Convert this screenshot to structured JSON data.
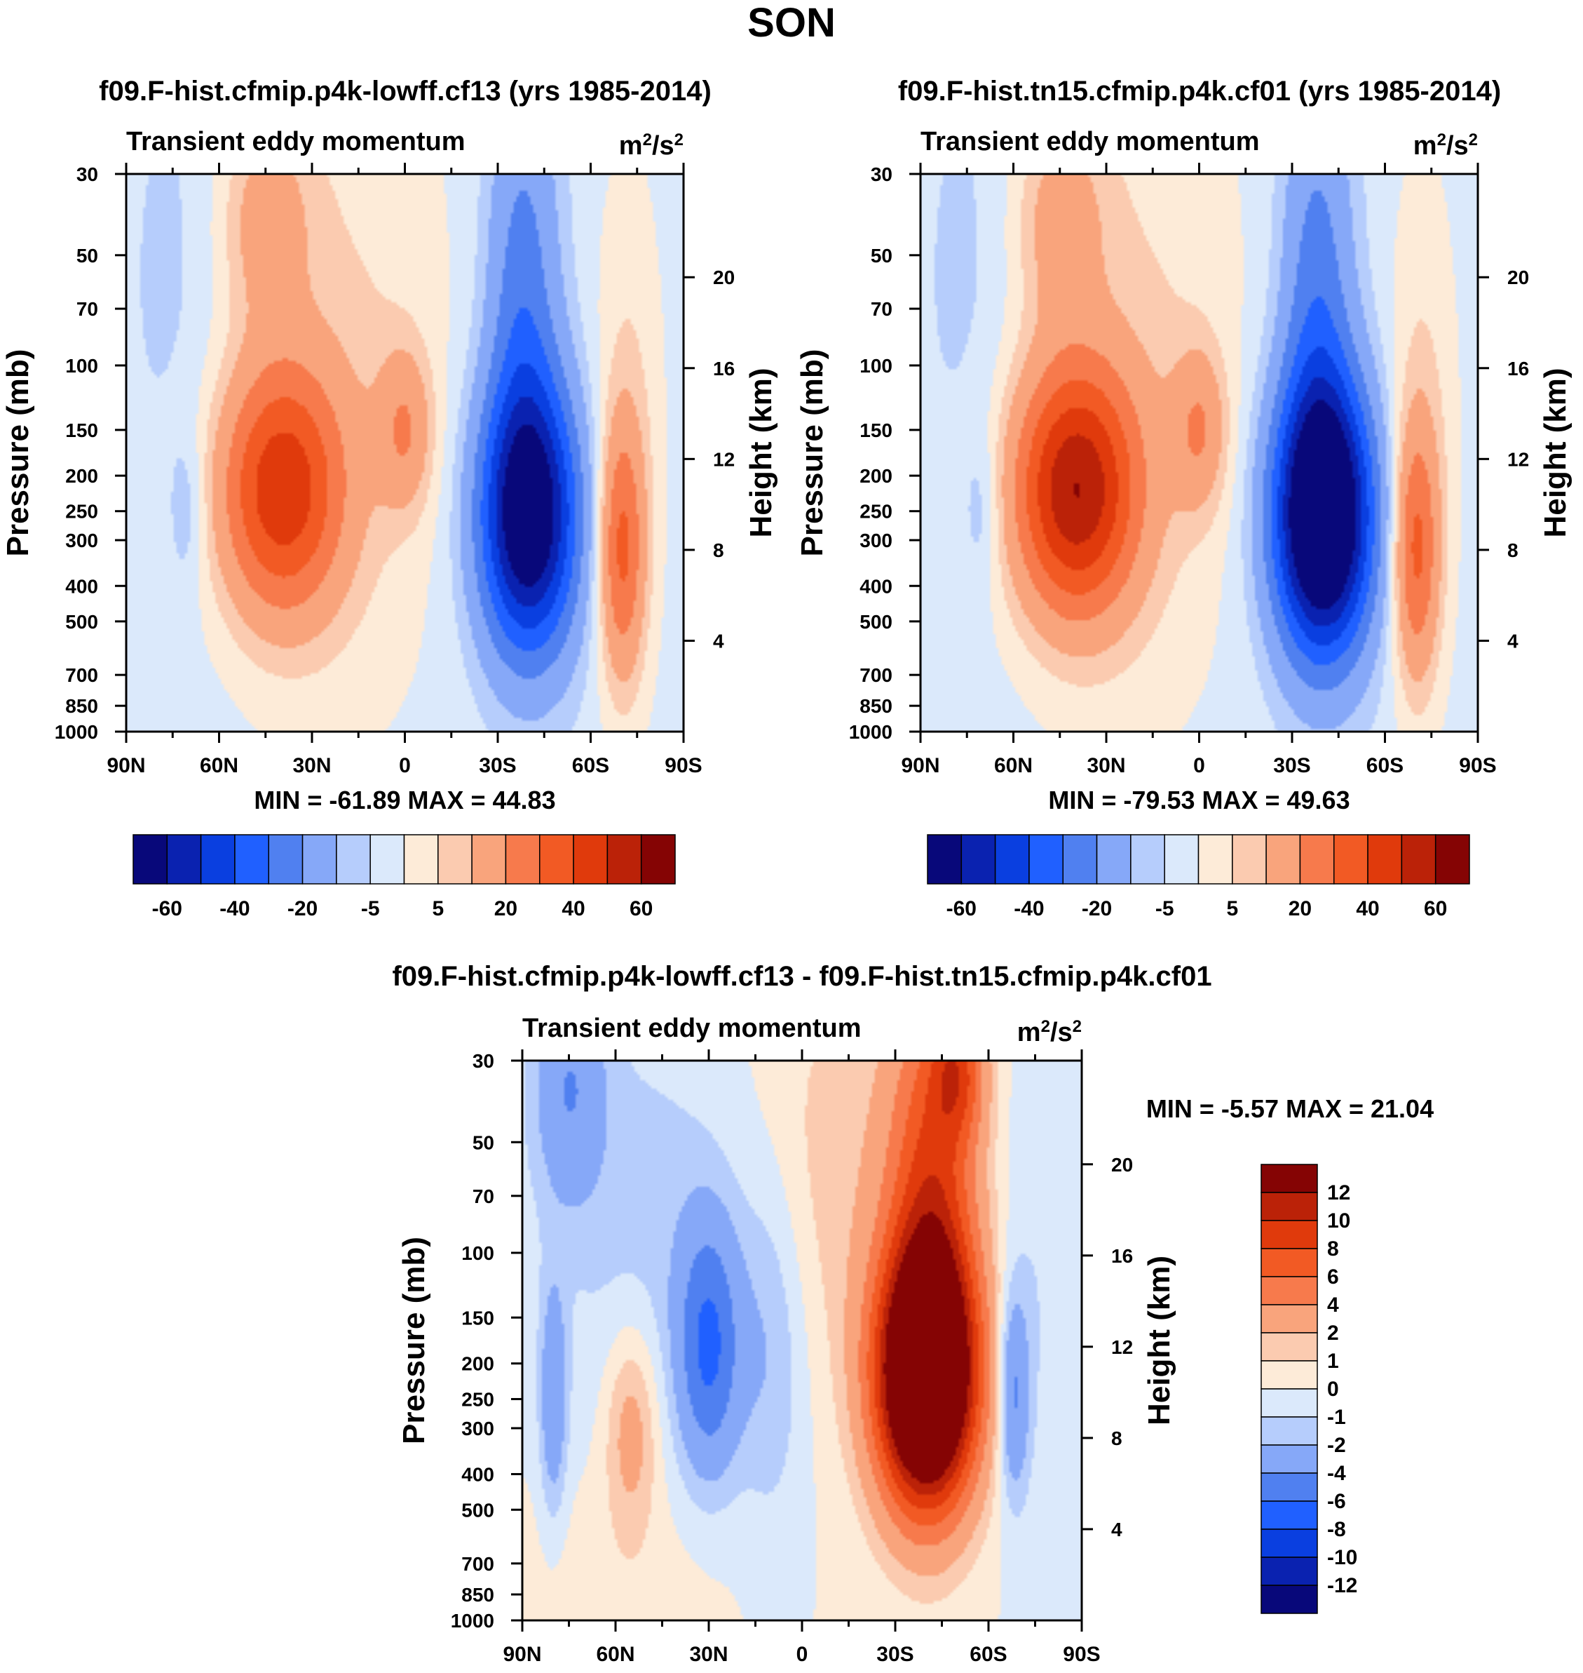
{
  "figure_title": "SON",
  "chart_data": [
    {
      "type": "heatmap",
      "title": "f09.F-hist.cfmip.p4k-lowff.cf13 (yrs 1985-2014)",
      "subtitle": "Transient eddy momentum",
      "units_base": "m",
      "units_denominator": "/s",
      "units_exponent": "2",
      "xlabel": "",
      "ylabel": "Pressure (mb)",
      "y2label": "Height (km)",
      "x_ticks": [
        90,
        60,
        30,
        0,
        -30,
        -60,
        -90
      ],
      "x_tick_labels": [
        "90N",
        "60N",
        "30N",
        "0",
        "30S",
        "60S",
        "90S"
      ],
      "y_ticks": [
        30,
        50,
        70,
        100,
        150,
        200,
        250,
        300,
        400,
        500,
        700,
        850,
        1000
      ],
      "y_tick_labels": [
        "30",
        "50",
        "70",
        "100",
        "150",
        "200",
        "250",
        "300",
        "400",
        "500",
        "700",
        "850",
        "1000"
      ],
      "y2_ticks": [
        20,
        16,
        12,
        8,
        4
      ],
      "y2_tick_labels": [
        "20",
        "16",
        "12",
        "8",
        "4"
      ],
      "ylim": [
        1000,
        30
      ],
      "y_scale": "log",
      "xlim": [
        90,
        -90
      ],
      "stats_text": "MIN = -61.89  MAX =  44.83",
      "min": -61.89,
      "max": 44.83,
      "colorbar_orientation": "horizontal",
      "colorbar_labels": [
        "-60",
        "-40",
        "-20",
        "-5",
        "5",
        "20",
        "40",
        "60"
      ],
      "features": [
        {
          "lat": 40,
          "p": 220,
          "value": 44.83
        },
        {
          "lat": -40,
          "p": 250,
          "value": -61.89
        },
        {
          "lat": 0,
          "p": 150,
          "value": 18
        },
        {
          "lat": -70,
          "p": 300,
          "value": 28
        },
        {
          "lat": 70,
          "p": 250,
          "value": -6
        }
      ]
    },
    {
      "type": "heatmap",
      "title": "f09.F-hist.tn15.cfmip.p4k.cf01 (yrs 1985-2014)",
      "subtitle": "Transient eddy momentum",
      "units_base": "m",
      "units_denominator": "/s",
      "units_exponent": "2",
      "xlabel": "",
      "ylabel": "Pressure (mb)",
      "y2label": "Height (km)",
      "x_ticks": [
        90,
        60,
        30,
        0,
        -30,
        -60,
        -90
      ],
      "x_tick_labels": [
        "90N",
        "60N",
        "30N",
        "0",
        "30S",
        "60S",
        "90S"
      ],
      "y_ticks": [
        30,
        50,
        70,
        100,
        150,
        200,
        250,
        300,
        400,
        500,
        700,
        850,
        1000
      ],
      "y_tick_labels": [
        "30",
        "50",
        "70",
        "100",
        "150",
        "200",
        "250",
        "300",
        "400",
        "500",
        "700",
        "850",
        "1000"
      ],
      "y2_ticks": [
        20,
        16,
        12,
        8,
        4
      ],
      "y2_tick_labels": [
        "20",
        "16",
        "12",
        "8",
        "4"
      ],
      "ylim": [
        1000,
        30
      ],
      "y_scale": "log",
      "xlim": [
        90,
        -90
      ],
      "stats_text": "MIN = -79.53  MAX =  49.63",
      "min": -79.53,
      "max": 49.63,
      "colorbar_orientation": "horizontal",
      "colorbar_labels": [
        "-60",
        "-40",
        "-20",
        "-5",
        "5",
        "20",
        "40",
        "60"
      ],
      "features": [
        {
          "lat": 40,
          "p": 200,
          "value": 49.63
        },
        {
          "lat": -42,
          "p": 250,
          "value": -79.53
        },
        {
          "lat": 0,
          "p": 150,
          "value": 15
        },
        {
          "lat": -70,
          "p": 300,
          "value": 32
        },
        {
          "lat": 68,
          "p": 250,
          "value": -8
        }
      ]
    },
    {
      "type": "heatmap",
      "title": "f09.F-hist.cfmip.p4k-lowff.cf13 - f09.F-hist.tn15.cfmip.p4k.cf01",
      "subtitle": "Transient eddy momentum",
      "units_base": "m",
      "units_denominator": "/s",
      "units_exponent": "2",
      "xlabel": "",
      "ylabel": "Pressure (mb)",
      "y2label": "Height (km)",
      "x_ticks": [
        90,
        60,
        30,
        0,
        -30,
        -60,
        -90
      ],
      "x_tick_labels": [
        "90N",
        "60N",
        "30N",
        "0",
        "30S",
        "60S",
        "90S"
      ],
      "y_ticks": [
        30,
        50,
        70,
        100,
        150,
        200,
        250,
        300,
        400,
        500,
        700,
        850,
        1000
      ],
      "y_tick_labels": [
        "30",
        "50",
        "70",
        "100",
        "150",
        "200",
        "250",
        "300",
        "400",
        "500",
        "700",
        "850",
        "1000"
      ],
      "y2_ticks": [
        20,
        16,
        12,
        8,
        4
      ],
      "y2_tick_labels": [
        "20",
        "16",
        "12",
        "8",
        "4"
      ],
      "ylim": [
        1000,
        30
      ],
      "y_scale": "log",
      "xlim": [
        90,
        -90
      ],
      "stats_text": "MIN =  -5.57  MAX =  21.04",
      "min": -5.57,
      "max": 21.04,
      "colorbar_orientation": "vertical",
      "colorbar_labels": [
        "12",
        "10",
        "8",
        "6",
        "4",
        "2",
        "1",
        "0",
        "-1",
        "-2",
        "-4",
        "-6",
        "-8",
        "-10",
        "-12"
      ],
      "features": [
        {
          "lat": -40,
          "p": 220,
          "value": 21.04
        },
        {
          "lat": 30,
          "p": 180,
          "value": -5.57
        },
        {
          "lat": 55,
          "p": 300,
          "value": 3
        },
        {
          "lat": -68,
          "p": 250,
          "value": -4
        },
        {
          "lat": 80,
          "p": 250,
          "value": -3
        }
      ]
    }
  ],
  "colors": {
    "scale_17": [
      "#08087a",
      "#0a22b0",
      "#0a3fe0",
      "#2060ff",
      "#5080f0",
      "#86a8f8",
      "#b6cdfc",
      "#dbe9fb",
      "#fdebd8",
      "#fbcbb0",
      "#f9a47c",
      "#f77a4c",
      "#f25a24",
      "#e03a0c",
      "#bb2208",
      "#850404"
    ]
  }
}
